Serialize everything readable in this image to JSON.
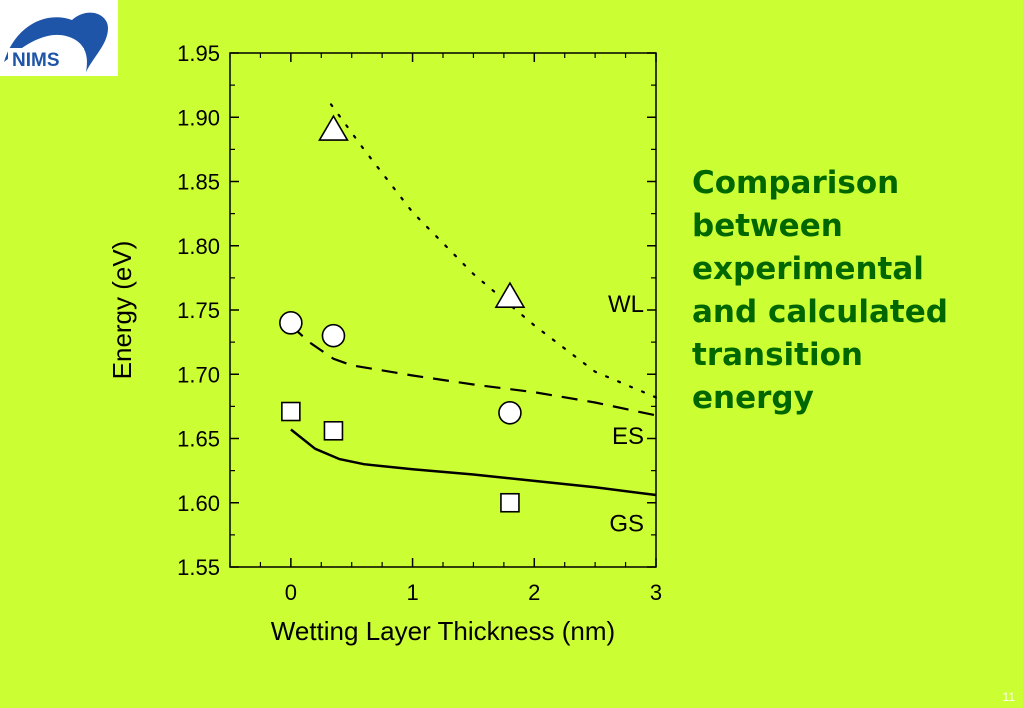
{
  "logo": {
    "text": "NIMS",
    "colors": {
      "swoosh": "#1f55a8",
      "text": "#1f55a8"
    }
  },
  "side_title": {
    "lines": [
      "Comparison",
      "between",
      "experimental",
      "and calculated",
      "transition",
      "energy"
    ]
  },
  "page_number": "11",
  "colors": {
    "background": "#ccff33",
    "title": "#006600",
    "ink": "#000000"
  },
  "chart_data": {
    "type": "scatter",
    "xlabel": "Wetting Layer Thickness (nm)",
    "ylabel": "Energy (eV)",
    "xlim": [
      -0.5,
      3
    ],
    "ylim": [
      1.55,
      1.95
    ],
    "xticks": [
      0,
      1,
      2,
      3
    ],
    "xtick_labels": [
      "0",
      "1",
      "2",
      "3"
    ],
    "yticks": [
      1.55,
      1.6,
      1.65,
      1.7,
      1.75,
      1.8,
      1.85,
      1.9,
      1.95
    ],
    "ytick_labels": [
      "1.55",
      "1.60",
      "1.65",
      "1.70",
      "1.75",
      "1.80",
      "1.85",
      "1.90",
      "1.95"
    ],
    "grid": false,
    "series": [
      {
        "name": "WL",
        "marker": "triangle",
        "line_style": "dotted",
        "points": [
          [
            0.35,
            1.89
          ],
          [
            1.8,
            1.76
          ]
        ],
        "line": [
          [
            0.33,
            1.91
          ],
          [
            0.6,
            1.875
          ],
          [
            1.0,
            1.826
          ],
          [
            1.5,
            1.778
          ],
          [
            2.0,
            1.738
          ],
          [
            2.5,
            1.702
          ],
          [
            3.0,
            1.682
          ]
        ]
      },
      {
        "name": "ES",
        "marker": "circle",
        "line_style": "dashed",
        "points": [
          [
            0,
            1.74
          ],
          [
            0.35,
            1.73
          ],
          [
            1.8,
            1.67
          ]
        ],
        "line": [
          [
            0.0,
            1.738
          ],
          [
            0.15,
            1.725
          ],
          [
            0.35,
            1.712
          ],
          [
            0.5,
            1.707
          ],
          [
            1.0,
            1.699
          ],
          [
            1.5,
            1.692
          ],
          [
            2.0,
            1.686
          ],
          [
            2.5,
            1.678
          ],
          [
            3.0,
            1.668
          ]
        ]
      },
      {
        "name": "GS",
        "marker": "square",
        "line_style": "solid",
        "points": [
          [
            0,
            1.671
          ],
          [
            0.35,
            1.656
          ],
          [
            1.8,
            1.6
          ]
        ],
        "line": [
          [
            0.0,
            1.657
          ],
          [
            0.2,
            1.642
          ],
          [
            0.4,
            1.634
          ],
          [
            0.6,
            1.63
          ],
          [
            1.0,
            1.626
          ],
          [
            1.5,
            1.622
          ],
          [
            2.0,
            1.617
          ],
          [
            2.5,
            1.612
          ],
          [
            3.0,
            1.606
          ]
        ]
      }
    ]
  }
}
